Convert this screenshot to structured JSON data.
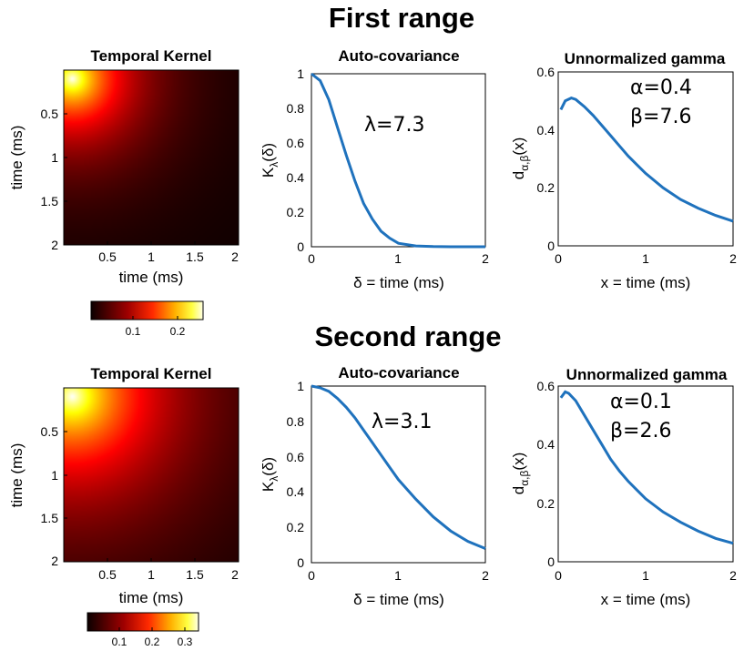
{
  "figure": {
    "rows": [
      {
        "section_title": "First range",
        "kernel": {
          "title": "Temporal Kernel",
          "xlabel": "time (ms)",
          "ylabel": "time (ms)",
          "xticks": [
            "0.5",
            "1",
            "1.5",
            "2"
          ],
          "yticks": [
            "0.5",
            "1",
            "1.5",
            "2"
          ],
          "colorbar_ticks": [
            "0.1",
            "0.2"
          ],
          "colorbar_max": 0.27
        },
        "autocov": {
          "title": "Auto-covariance",
          "xlabel": "δ = time (ms)",
          "ylabel": "K",
          "ylabel_sub": "λ",
          "ylabel_tail": "(δ)",
          "annotation": "λ=7.3",
          "xticks": [
            "0",
            "1",
            "2"
          ],
          "yticks": [
            "0",
            "0.2",
            "0.4",
            "0.6",
            "0.8",
            "1"
          ]
        },
        "gamma": {
          "title": "Unnormalized gamma",
          "xlabel": "x = time (ms)",
          "ylabel": "d",
          "ylabel_sub": "α,β",
          "ylabel_tail": "(x)",
          "annotation_alpha": "α=0.4",
          "annotation_beta": "β=7.6",
          "xticks": [
            "0",
            "1",
            "2"
          ],
          "yticks": [
            "0",
            "0.2",
            "0.4",
            "0.6"
          ]
        }
      },
      {
        "section_title": "Second range",
        "kernel": {
          "title": "Temporal Kernel",
          "xlabel": "time (ms)",
          "ylabel": "time (ms)",
          "xticks": [
            "0.5",
            "1",
            "1.5",
            "2"
          ],
          "yticks": [
            "0.5",
            "1",
            "1.5",
            "2"
          ],
          "colorbar_ticks": [
            "0.1",
            "0.2",
            "0.3"
          ],
          "colorbar_max": 0.34
        },
        "autocov": {
          "title": "Auto-covariance",
          "xlabel": "δ = time (ms)",
          "ylabel": "K",
          "ylabel_sub": "λ",
          "ylabel_tail": "(δ)",
          "annotation": "λ=3.1",
          "xticks": [
            "0",
            "1",
            "2"
          ],
          "yticks": [
            "0",
            "0.2",
            "0.4",
            "0.6",
            "0.8",
            "1"
          ]
        },
        "gamma": {
          "title": "Unnormalized gamma",
          "xlabel": "x = time (ms)",
          "ylabel": "d",
          "ylabel_sub": "α,β",
          "ylabel_tail": "(x)",
          "annotation_alpha": "α=0.1",
          "annotation_beta": "β=2.6",
          "xticks": [
            "0",
            "1",
            "2"
          ],
          "yticks": [
            "0",
            "0.2",
            "0.4",
            "0.6"
          ]
        }
      }
    ]
  },
  "chart_data": [
    {
      "type": "heatmap",
      "title": "Temporal Kernel",
      "xlabel": "time (ms)",
      "ylabel": "time (ms)",
      "xlim": [
        0,
        2
      ],
      "ylim": [
        0,
        2
      ],
      "colormap": "hot",
      "clim": [
        0,
        0.27
      ],
      "peak": [
        0.1,
        0.1
      ]
    },
    {
      "type": "line",
      "title": "Auto-covariance",
      "xlabel": "δ = time (ms)",
      "ylabel": "Kλ(δ)",
      "xlim": [
        0,
        2
      ],
      "ylim": [
        0,
        1
      ],
      "x": [
        0,
        0.1,
        0.2,
        0.3,
        0.4,
        0.5,
        0.6,
        0.7,
        0.8,
        0.9,
        1.0,
        1.2,
        1.4,
        1.6,
        1.8,
        2.0
      ],
      "series": [
        {
          "values": [
            1.0,
            0.96,
            0.85,
            0.69,
            0.53,
            0.38,
            0.25,
            0.16,
            0.09,
            0.05,
            0.02,
            0.005,
            0.001,
            0.0,
            0.0,
            0.0
          ]
        }
      ]
    },
    {
      "type": "line",
      "title": "Unnormalized gamma",
      "xlabel": "x = time (ms)",
      "ylabel": "dα,β(x)",
      "xlim": [
        0,
        2
      ],
      "ylim": [
        0,
        0.6
      ],
      "x": [
        0.03,
        0.08,
        0.15,
        0.2,
        0.3,
        0.4,
        0.5,
        0.6,
        0.7,
        0.8,
        0.9,
        1.0,
        1.2,
        1.4,
        1.6,
        1.8,
        2.0
      ],
      "series": [
        {
          "values": [
            0.47,
            0.5,
            0.51,
            0.505,
            0.48,
            0.45,
            0.415,
            0.38,
            0.345,
            0.31,
            0.28,
            0.25,
            0.2,
            0.16,
            0.13,
            0.105,
            0.085
          ]
        }
      ]
    },
    {
      "type": "heatmap",
      "title": "Temporal Kernel",
      "xlabel": "time (ms)",
      "ylabel": "time (ms)",
      "xlim": [
        0,
        2
      ],
      "ylim": [
        0,
        2
      ],
      "colormap": "hot",
      "clim": [
        0,
        0.34
      ],
      "peak": [
        0.1,
        0.1
      ]
    },
    {
      "type": "line",
      "title": "Auto-covariance",
      "xlabel": "δ = time (ms)",
      "ylabel": "Kλ(δ)",
      "xlim": [
        0,
        2
      ],
      "ylim": [
        0,
        1
      ],
      "x": [
        0,
        0.1,
        0.2,
        0.3,
        0.4,
        0.5,
        0.6,
        0.7,
        0.8,
        0.9,
        1.0,
        1.2,
        1.4,
        1.6,
        1.8,
        2.0
      ],
      "series": [
        {
          "values": [
            1.0,
            0.99,
            0.97,
            0.93,
            0.88,
            0.82,
            0.75,
            0.68,
            0.61,
            0.54,
            0.47,
            0.36,
            0.26,
            0.18,
            0.12,
            0.08
          ]
        }
      ]
    },
    {
      "type": "line",
      "title": "Unnormalized gamma",
      "xlabel": "x = time (ms)",
      "ylabel": "dα,β(x)",
      "xlim": [
        0,
        2
      ],
      "ylim": [
        0,
        0.6
      ],
      "x": [
        0.03,
        0.08,
        0.12,
        0.2,
        0.3,
        0.4,
        0.5,
        0.6,
        0.7,
        0.8,
        0.9,
        1.0,
        1.2,
        1.4,
        1.6,
        1.8,
        2.0
      ],
      "series": [
        {
          "values": [
            0.56,
            0.58,
            0.575,
            0.55,
            0.5,
            0.45,
            0.4,
            0.35,
            0.31,
            0.275,
            0.245,
            0.215,
            0.17,
            0.135,
            0.105,
            0.08,
            0.063
          ]
        }
      ]
    }
  ]
}
